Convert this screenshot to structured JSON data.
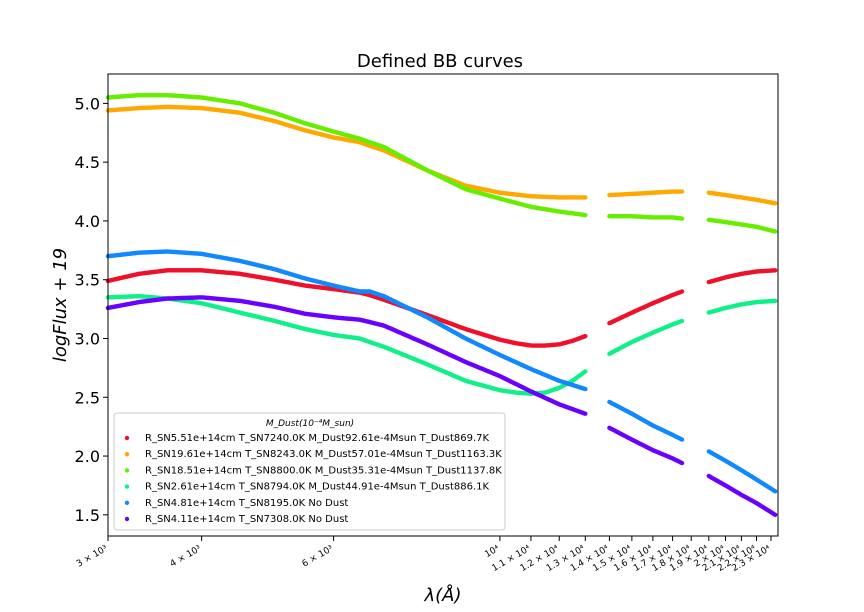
{
  "chart_data": {
    "type": "scatter",
    "title": "Defined BB curves",
    "xlabel": "λ(Å)",
    "ylabel": "logFlux + 19",
    "xscale": "log",
    "xlim": [
      3000,
      23500
    ],
    "ylim": [
      1.32,
      5.25
    ],
    "yticks": [
      1.5,
      2.0,
      2.5,
      3.0,
      3.5,
      4.0,
      4.5,
      5.0
    ],
    "ytick_labels": [
      "1.5",
      "2.0",
      "2.5",
      "3.0",
      "3.5",
      "4.0",
      "4.5",
      "5.0"
    ],
    "xticks": [
      3000,
      4000,
      6000,
      10000,
      11000,
      12000,
      13000,
      14000,
      15000,
      16000,
      17000,
      18000,
      19000,
      20000,
      21000,
      22000,
      23000
    ],
    "xtick_labels": [
      "3 × 10³",
      "4 × 10³",
      "6 × 10³",
      "10⁴",
      "1.1 × 10⁴",
      "1.2 × 10⁴",
      "1.3 × 10⁴",
      "1.4 × 10⁴",
      "1.5 × 10⁴",
      "1.6 × 10⁴",
      "1.7 × 10⁴",
      "1.8 × 10⁴",
      "1.9 × 10⁴",
      "2 × 10⁴",
      "2.1 × 10⁴",
      "2.2 × 10⁴",
      "2.3 × 10⁴"
    ],
    "segments": [
      [
        3000,
        6700
      ],
      [
        6700,
        13000
      ],
      [
        14000,
        17500
      ],
      [
        19000,
        23300
      ]
    ],
    "grid": false,
    "legend_position": "lower-left",
    "legend_title": "M_Dust(10⁻⁴M_sun)",
    "series": [
      {
        "name": "R_SN5.51e+14cm T_SN7240.0K M_Dust92.61e-4Msun T_Dust869.7K",
        "color": "#f0102a",
        "x": [
          3000,
          3300,
          3600,
          4000,
          4500,
          5000,
          5500,
          6000,
          6500,
          6700,
          7000,
          8000,
          9000,
          10000,
          10500,
          11000,
          11500,
          12000,
          12500,
          13000,
          14000,
          15000,
          16000,
          17000,
          17500,
          19000,
          20000,
          21000,
          22000,
          23300
        ],
        "y": [
          3.49,
          3.55,
          3.58,
          3.58,
          3.55,
          3.5,
          3.45,
          3.42,
          3.39,
          3.37,
          3.33,
          3.2,
          3.08,
          2.99,
          2.96,
          2.94,
          2.94,
          2.95,
          2.98,
          3.02,
          3.13,
          3.22,
          3.3,
          3.37,
          3.4,
          3.48,
          3.52,
          3.55,
          3.57,
          3.58
        ]
      },
      {
        "name": "R_SN19.61e+14cm T_SN8243.0K M_Dust57.01e-4Msun T_Dust1163.3K",
        "color": "#ffa800",
        "x": [
          3000,
          3300,
          3600,
          4000,
          4500,
          5000,
          5500,
          6000,
          6500,
          6700,
          7000,
          8000,
          9000,
          10000,
          11000,
          12000,
          13000,
          14000,
          15000,
          16000,
          17000,
          17500,
          19000,
          20000,
          21000,
          22000,
          23300
        ],
        "y": [
          4.94,
          4.96,
          4.97,
          4.96,
          4.92,
          4.85,
          4.77,
          4.71,
          4.67,
          4.64,
          4.6,
          4.43,
          4.3,
          4.24,
          4.21,
          4.2,
          4.2,
          4.22,
          4.23,
          4.24,
          4.25,
          4.25,
          4.24,
          4.22,
          4.2,
          4.18,
          4.15
        ]
      },
      {
        "name": "R_SN18.51e+14cm T_SN8800.0K M_Dust35.31e-4Msun T_Dust1137.8K",
        "color": "#66ee00",
        "x": [
          3000,
          3300,
          3600,
          4000,
          4500,
          5000,
          5500,
          6000,
          6500,
          6700,
          7000,
          8000,
          9000,
          10000,
          11000,
          12000,
          13000,
          14000,
          15000,
          16000,
          17000,
          17500,
          19000,
          20000,
          21000,
          22000,
          23300
        ],
        "y": [
          5.05,
          5.07,
          5.07,
          5.05,
          5.0,
          4.92,
          4.83,
          4.76,
          4.7,
          4.67,
          4.63,
          4.43,
          4.27,
          4.19,
          4.12,
          4.08,
          4.05,
          4.04,
          4.04,
          4.03,
          4.03,
          4.02,
          4.01,
          3.99,
          3.97,
          3.95,
          3.91
        ]
      },
      {
        "name": "R_SN2.61e+14cm T_SN8794.0K M_Dust44.91e-4Msun T_Dust886.1K",
        "color": "#10f088",
        "x": [
          3000,
          3300,
          3600,
          4000,
          4500,
          5000,
          5500,
          6000,
          6500,
          6700,
          7000,
          8000,
          9000,
          10000,
          10500,
          11000,
          11500,
          12000,
          12500,
          13000,
          14000,
          15000,
          16000,
          17000,
          17500,
          19000,
          20000,
          21000,
          22000,
          23300
        ],
        "y": [
          3.35,
          3.36,
          3.34,
          3.3,
          3.22,
          3.15,
          3.08,
          3.03,
          3.0,
          2.97,
          2.93,
          2.78,
          2.64,
          2.56,
          2.54,
          2.53,
          2.54,
          2.58,
          2.64,
          2.72,
          2.87,
          2.97,
          3.05,
          3.12,
          3.15,
          3.22,
          3.26,
          3.29,
          3.31,
          3.32
        ]
      },
      {
        "name": "R_SN4.81e+14cm T_SN8195.0K No Dust",
        "color": "#1188ff",
        "x": [
          3000,
          3300,
          3600,
          4000,
          4500,
          5000,
          5500,
          6000,
          6500,
          6700,
          7000,
          8000,
          9000,
          10000,
          11000,
          12000,
          13000,
          14000,
          15000,
          16000,
          17000,
          17500,
          19000,
          20000,
          21000,
          22000,
          23300
        ],
        "y": [
          3.7,
          3.73,
          3.74,
          3.72,
          3.66,
          3.59,
          3.51,
          3.45,
          3.4,
          3.4,
          3.36,
          3.18,
          3.0,
          2.86,
          2.74,
          2.64,
          2.57,
          2.46,
          2.36,
          2.26,
          2.18,
          2.14,
          2.04,
          1.96,
          1.88,
          1.8,
          1.7
        ]
      },
      {
        "name": "R_SN4.11e+14cm T_SN7308.0K No Dust",
        "color": "#6a00ff",
        "x": [
          3000,
          3300,
          3600,
          4000,
          4500,
          5000,
          5500,
          6000,
          6500,
          6700,
          7000,
          8000,
          9000,
          10000,
          11000,
          12000,
          13000,
          14000,
          15000,
          16000,
          17000,
          17500,
          19000,
          20000,
          21000,
          22000,
          23300
        ],
        "y": [
          3.26,
          3.31,
          3.34,
          3.35,
          3.32,
          3.27,
          3.21,
          3.18,
          3.16,
          3.14,
          3.11,
          2.95,
          2.8,
          2.68,
          2.55,
          2.44,
          2.36,
          2.24,
          2.14,
          2.05,
          1.98,
          1.94,
          1.83,
          1.75,
          1.67,
          1.6,
          1.5
        ]
      }
    ]
  }
}
